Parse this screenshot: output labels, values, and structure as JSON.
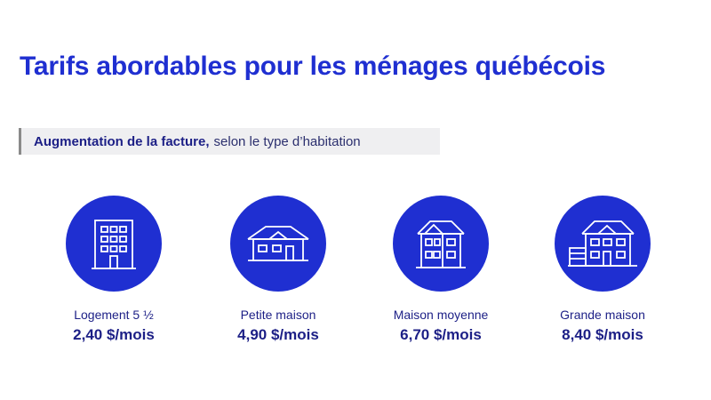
{
  "title": "Tarifs abordables pour les ménages québécois",
  "subtitle": {
    "bold": "Augmentation de la facture,",
    "rest": "selon le type d’habitation"
  },
  "colors": {
    "brand_blue": "#1f2fd1",
    "text_dark_blue": "#1c1f86",
    "subtitle_bg": "#efeff1"
  },
  "items": [
    {
      "icon": "apartment-building-icon",
      "label": "Logement 5 ½",
      "price": "2,40 $/mois"
    },
    {
      "icon": "small-house-icon",
      "label": "Petite maison",
      "price": "4,90 $/mois"
    },
    {
      "icon": "two-storey-house-icon",
      "label": "Maison moyenne",
      "price": "6,70 $/mois"
    },
    {
      "icon": "large-house-garage-icon",
      "label": "Grande maison",
      "price": "8,40 $/mois"
    }
  ]
}
